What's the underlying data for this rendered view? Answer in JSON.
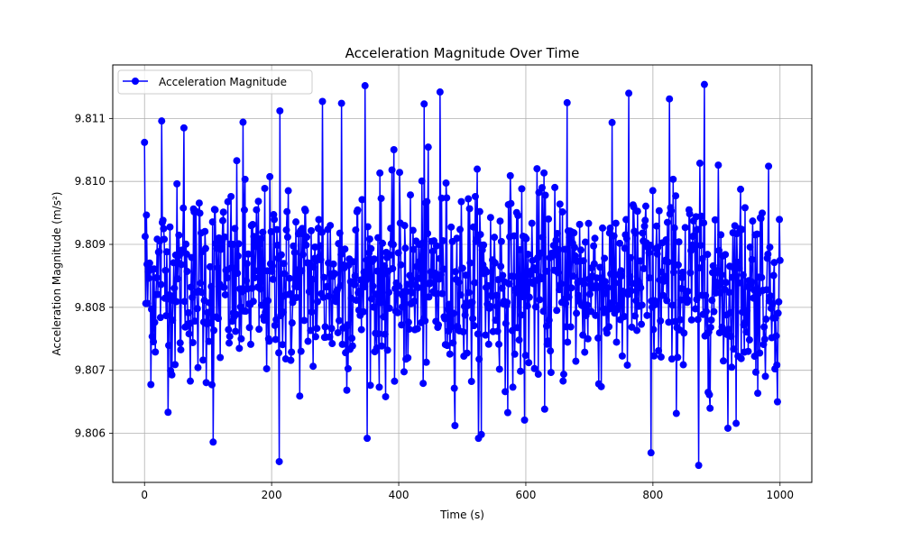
{
  "chart_data": {
    "type": "line",
    "title": "Acceleration Magnitude Over Time",
    "xlabel": "Time (s)",
    "ylabel": "Acceleration Magnitude (m/s²)",
    "xlim": [
      -50,
      1050
    ],
    "ylim": [
      9.80522,
      9.81185
    ],
    "x_ticks": [
      0,
      200,
      400,
      600,
      800,
      1000
    ],
    "x_tick_labels": [
      "0",
      "200",
      "400",
      "600",
      "800",
      "1000"
    ],
    "y_ticks": [
      9.806,
      9.807,
      9.808,
      9.809,
      9.81,
      9.811
    ],
    "y_tick_labels": [
      "9.806",
      "9.807",
      "9.808",
      "9.809",
      "9.810",
      "9.811"
    ],
    "grid": true,
    "legend": {
      "position": "top-left",
      "entries": [
        "Acceleration Magnitude"
      ]
    },
    "series": [
      {
        "name": "Acceleration Magnitude",
        "color": "#0000ff",
        "marker": "circle",
        "x_start": 0,
        "x_end": 1000,
        "sample_count": 1000,
        "mean": 9.80838,
        "std": 0.00078,
        "min": 9.80552,
        "max": 9.81155,
        "notable_points": [
          {
            "x": 0,
            "y": 9.80585
          },
          {
            "x": 0,
            "y": 9.81062
          },
          {
            "x": 27,
            "y": 9.81096
          },
          {
            "x": 62,
            "y": 9.81085
          },
          {
            "x": 108,
            "y": 9.80586
          },
          {
            "x": 155,
            "y": 9.81094
          },
          {
            "x": 212,
            "y": 9.80555
          },
          {
            "x": 213,
            "y": 9.81112
          },
          {
            "x": 280,
            "y": 9.80587
          },
          {
            "x": 280,
            "y": 9.81127
          },
          {
            "x": 310,
            "y": 9.81124
          },
          {
            "x": 347,
            "y": 9.81152
          },
          {
            "x": 440,
            "y": 9.81123
          },
          {
            "x": 465,
            "y": 9.81142
          },
          {
            "x": 530,
            "y": 9.80598
          },
          {
            "x": 598,
            "y": 9.80621
          },
          {
            "x": 665,
            "y": 9.81125
          },
          {
            "x": 762,
            "y": 9.8114
          },
          {
            "x": 797,
            "y": 9.80569
          },
          {
            "x": 826,
            "y": 9.81131
          },
          {
            "x": 872,
            "y": 9.80549
          },
          {
            "x": 881,
            "y": 9.81154
          },
          {
            "x": 918,
            "y": 9.80608
          },
          {
            "x": 996,
            "y": 9.8065
          }
        ]
      }
    ]
  }
}
